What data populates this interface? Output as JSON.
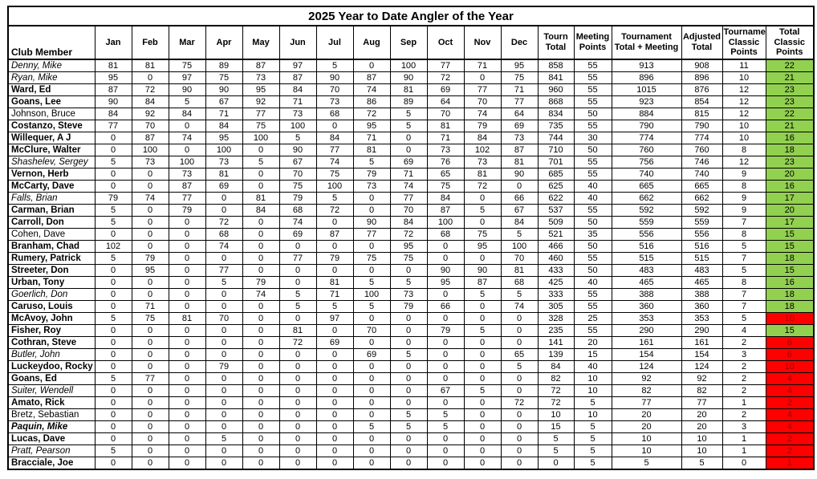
{
  "title": "2025 Year to Date Angler of the Year",
  "columns": {
    "member": "Club Member",
    "months": [
      "Jan",
      "Feb",
      "Mar",
      "Apr",
      "May",
      "Jun",
      "Jul",
      "Aug",
      "Sep",
      "Oct",
      "Nov",
      "Dec"
    ],
    "tourn_total": "Tourn Total",
    "meeting_points": "Meeting Points",
    "tournament_total_meeting": "Tournament Total + Meeting",
    "adjusted_total": "Adjusted Total",
    "tournament_classic_points": "Tournament Classic Points",
    "total_classic_points": "Total Classic Points"
  },
  "colors": {
    "green": "#92D050",
    "red": "#FF0000",
    "red_text": "#9E0000",
    "border": "#000000"
  },
  "rows": [
    {
      "name": "Denny, Mike",
      "style": "italic",
      "months": [
        81,
        81,
        75,
        89,
        87,
        97,
        5,
        0,
        100,
        77,
        71,
        95
      ],
      "tourn_total": 858,
      "meeting_points": 55,
      "tournament_total_meeting": 913,
      "adjusted_total": 908,
      "tournament_classic_points": 11,
      "total_classic_points": 22,
      "classic_status": "green"
    },
    {
      "name": "Ryan, Mike",
      "style": "italic",
      "months": [
        95,
        0,
        97,
        75,
        73,
        87,
        90,
        87,
        90,
        72,
        0,
        75
      ],
      "tourn_total": 841,
      "meeting_points": 55,
      "tournament_total_meeting": 896,
      "adjusted_total": 896,
      "tournament_classic_points": 10,
      "total_classic_points": 21,
      "classic_status": "green"
    },
    {
      "name": "Ward, Ed",
      "style": "bold",
      "months": [
        87,
        72,
        90,
        90,
        95,
        84,
        70,
        74,
        81,
        69,
        77,
        71
      ],
      "tourn_total": 960,
      "meeting_points": 55,
      "tournament_total_meeting": 1015,
      "adjusted_total": 876,
      "tournament_classic_points": 12,
      "total_classic_points": 23,
      "classic_status": "green"
    },
    {
      "name": "Goans, Lee",
      "style": "bold",
      "months": [
        90,
        84,
        5,
        67,
        92,
        71,
        73,
        86,
        89,
        64,
        70,
        77
      ],
      "tourn_total": 868,
      "meeting_points": 55,
      "tournament_total_meeting": 923,
      "adjusted_total": 854,
      "tournament_classic_points": 12,
      "total_classic_points": 23,
      "classic_status": "green"
    },
    {
      "name": "Johnson, Bruce",
      "style": "regular",
      "months": [
        84,
        92,
        84,
        71,
        77,
        73,
        68,
        72,
        5,
        70,
        74,
        64
      ],
      "tourn_total": 834,
      "meeting_points": 50,
      "tournament_total_meeting": 884,
      "adjusted_total": 815,
      "tournament_classic_points": 12,
      "total_classic_points": 22,
      "classic_status": "green"
    },
    {
      "name": "Costanzo, Steve",
      "style": "bold",
      "months": [
        77,
        70,
        0,
        84,
        75,
        100,
        0,
        95,
        5,
        81,
        79,
        69
      ],
      "tourn_total": 735,
      "meeting_points": 55,
      "tournament_total_meeting": 790,
      "adjusted_total": 790,
      "tournament_classic_points": 10,
      "total_classic_points": 21,
      "classic_status": "green"
    },
    {
      "name": "Willequer, A J",
      "style": "bold",
      "months": [
        0,
        87,
        74,
        95,
        100,
        5,
        84,
        71,
        0,
        71,
        84,
        73
      ],
      "tourn_total": 744,
      "meeting_points": 30,
      "tournament_total_meeting": 774,
      "adjusted_total": 774,
      "tournament_classic_points": 10,
      "total_classic_points": 16,
      "classic_status": "green"
    },
    {
      "name": "McClure, Walter",
      "style": "bold",
      "months": [
        0,
        100,
        0,
        100,
        0,
        90,
        77,
        81,
        0,
        73,
        102,
        87
      ],
      "tourn_total": 710,
      "meeting_points": 50,
      "tournament_total_meeting": 760,
      "adjusted_total": 760,
      "tournament_classic_points": 8,
      "total_classic_points": 18,
      "classic_status": "green"
    },
    {
      "name": "Shashelev, Sergey",
      "style": "italic",
      "months": [
        5,
        73,
        100,
        73,
        5,
        67,
        74,
        5,
        69,
        76,
        73,
        81
      ],
      "tourn_total": 701,
      "meeting_points": 55,
      "tournament_total_meeting": 756,
      "adjusted_total": 746,
      "tournament_classic_points": 12,
      "total_classic_points": 23,
      "classic_status": "green"
    },
    {
      "name": "Vernon, Herb",
      "style": "bold",
      "months": [
        0,
        0,
        73,
        81,
        0,
        70,
        75,
        79,
        71,
        65,
        81,
        90
      ],
      "tourn_total": 685,
      "meeting_points": 55,
      "tournament_total_meeting": 740,
      "adjusted_total": 740,
      "tournament_classic_points": 9,
      "total_classic_points": 20,
      "classic_status": "green"
    },
    {
      "name": "McCarty, Dave",
      "style": "bold",
      "months": [
        0,
        0,
        87,
        69,
        0,
        75,
        100,
        73,
        74,
        75,
        72,
        0
      ],
      "tourn_total": 625,
      "meeting_points": 40,
      "tournament_total_meeting": 665,
      "adjusted_total": 665,
      "tournament_classic_points": 8,
      "total_classic_points": 16,
      "classic_status": "green"
    },
    {
      "name": "Falls, Brian",
      "style": "italic",
      "months": [
        79,
        74,
        77,
        0,
        81,
        79,
        5,
        0,
        77,
        84,
        0,
        66
      ],
      "tourn_total": 622,
      "meeting_points": 40,
      "tournament_total_meeting": 662,
      "adjusted_total": 662,
      "tournament_classic_points": 9,
      "total_classic_points": 17,
      "classic_status": "green"
    },
    {
      "name": "Carman, Brian",
      "style": "bold",
      "months": [
        5,
        0,
        79,
        0,
        84,
        68,
        72,
        0,
        70,
        87,
        5,
        67
      ],
      "tourn_total": 537,
      "meeting_points": 55,
      "tournament_total_meeting": 592,
      "adjusted_total": 592,
      "tournament_classic_points": 9,
      "total_classic_points": 20,
      "classic_status": "green"
    },
    {
      "name": "Carroll, Don",
      "style": "bold",
      "months": [
        5,
        0,
        0,
        72,
        0,
        74,
        0,
        90,
        84,
        100,
        0,
        84
      ],
      "tourn_total": 509,
      "meeting_points": 50,
      "tournament_total_meeting": 559,
      "adjusted_total": 559,
      "tournament_classic_points": 7,
      "total_classic_points": 17,
      "classic_status": "green"
    },
    {
      "name": "Cohen, Dave",
      "style": "regular",
      "months": [
        0,
        0,
        0,
        68,
        0,
        69,
        87,
        77,
        72,
        68,
        75,
        5
      ],
      "tourn_total": 521,
      "meeting_points": 35,
      "tournament_total_meeting": 556,
      "adjusted_total": 556,
      "tournament_classic_points": 8,
      "total_classic_points": 15,
      "classic_status": "green"
    },
    {
      "name": "Branham, Chad",
      "style": "bold",
      "months": [
        102,
        0,
        0,
        74,
        0,
        0,
        0,
        0,
        95,
        0,
        95,
        100
      ],
      "tourn_total": 466,
      "meeting_points": 50,
      "tournament_total_meeting": 516,
      "adjusted_total": 516,
      "tournament_classic_points": 5,
      "total_classic_points": 15,
      "classic_status": "green"
    },
    {
      "name": "Rumery, Patrick",
      "style": "bold",
      "months": [
        5,
        79,
        0,
        0,
        0,
        77,
        79,
        75,
        75,
        0,
        0,
        70
      ],
      "tourn_total": 460,
      "meeting_points": 55,
      "tournament_total_meeting": 515,
      "adjusted_total": 515,
      "tournament_classic_points": 7,
      "total_classic_points": 18,
      "classic_status": "green"
    },
    {
      "name": "Streeter, Don",
      "style": "bold",
      "months": [
        0,
        95,
        0,
        77,
        0,
        0,
        0,
        0,
        0,
        90,
        90,
        81
      ],
      "tourn_total": 433,
      "meeting_points": 50,
      "tournament_total_meeting": 483,
      "adjusted_total": 483,
      "tournament_classic_points": 5,
      "total_classic_points": 15,
      "classic_status": "green"
    },
    {
      "name": "Urban, Tony",
      "style": "bold",
      "months": [
        0,
        0,
        0,
        5,
        79,
        0,
        81,
        5,
        5,
        95,
        87,
        68
      ],
      "tourn_total": 425,
      "meeting_points": 40,
      "tournament_total_meeting": 465,
      "adjusted_total": 465,
      "tournament_classic_points": 8,
      "total_classic_points": 16,
      "classic_status": "green"
    },
    {
      "name": "Goerlich, Don",
      "style": "italic",
      "months": [
        0,
        0,
        0,
        0,
        74,
        5,
        71,
        100,
        73,
        0,
        5,
        5
      ],
      "tourn_total": 333,
      "meeting_points": 55,
      "tournament_total_meeting": 388,
      "adjusted_total": 388,
      "tournament_classic_points": 7,
      "total_classic_points": 18,
      "classic_status": "green"
    },
    {
      "name": "Caruso, Louis",
      "style": "bold",
      "months": [
        0,
        71,
        0,
        0,
        0,
        5,
        5,
        5,
        79,
        66,
        0,
        74
      ],
      "tourn_total": 305,
      "meeting_points": 55,
      "tournament_total_meeting": 360,
      "adjusted_total": 360,
      "tournament_classic_points": 7,
      "total_classic_points": 18,
      "classic_status": "green"
    },
    {
      "name": "McAvoy, John",
      "style": "bold",
      "months": [
        5,
        75,
        81,
        70,
        0,
        0,
        97,
        0,
        0,
        0,
        0,
        0
      ],
      "tourn_total": 328,
      "meeting_points": 25,
      "tournament_total_meeting": 353,
      "adjusted_total": 353,
      "tournament_classic_points": 5,
      "total_classic_points": 10,
      "classic_status": "red"
    },
    {
      "name": "Fisher, Roy",
      "style": "bold",
      "months": [
        0,
        0,
        0,
        0,
        0,
        81,
        0,
        70,
        0,
        79,
        5,
        0
      ],
      "tourn_total": 235,
      "meeting_points": 55,
      "tournament_total_meeting": 290,
      "adjusted_total": 290,
      "tournament_classic_points": 4,
      "total_classic_points": 15,
      "classic_status": "green"
    },
    {
      "name": "Cothran, Steve",
      "style": "bold",
      "months": [
        0,
        0,
        0,
        0,
        0,
        72,
        69,
        0,
        0,
        0,
        0,
        0
      ],
      "tourn_total": 141,
      "meeting_points": 20,
      "tournament_total_meeting": 161,
      "adjusted_total": 161,
      "tournament_classic_points": 2,
      "total_classic_points": 6,
      "classic_status": "red"
    },
    {
      "name": "Butler, John",
      "style": "italic",
      "months": [
        0,
        0,
        0,
        0,
        0,
        0,
        0,
        69,
        5,
        0,
        0,
        65
      ],
      "tourn_total": 139,
      "meeting_points": 15,
      "tournament_total_meeting": 154,
      "adjusted_total": 154,
      "tournament_classic_points": 3,
      "total_classic_points": 6,
      "classic_status": "red"
    },
    {
      "name": "Luckeydoo, Rocky",
      "style": "bold",
      "months": [
        0,
        0,
        0,
        79,
        0,
        0,
        0,
        0,
        0,
        0,
        0,
        5
      ],
      "tourn_total": 84,
      "meeting_points": 40,
      "tournament_total_meeting": 124,
      "adjusted_total": 124,
      "tournament_classic_points": 2,
      "total_classic_points": 10,
      "classic_status": "red"
    },
    {
      "name": "Goans, Ed",
      "style": "bold",
      "months": [
        5,
        77,
        0,
        0,
        0,
        0,
        0,
        0,
        0,
        0,
        0,
        0
      ],
      "tourn_total": 82,
      "meeting_points": 10,
      "tournament_total_meeting": 92,
      "adjusted_total": 92,
      "tournament_classic_points": 2,
      "total_classic_points": 4,
      "classic_status": "red"
    },
    {
      "name": "Suiter, Wendell",
      "style": "italic",
      "months": [
        0,
        0,
        0,
        0,
        0,
        0,
        0,
        0,
        0,
        67,
        5,
        0
      ],
      "tourn_total": 72,
      "meeting_points": 10,
      "tournament_total_meeting": 82,
      "adjusted_total": 82,
      "tournament_classic_points": 2,
      "total_classic_points": 4,
      "classic_status": "red"
    },
    {
      "name": "Amato, Rick",
      "style": "bold",
      "months": [
        0,
        0,
        0,
        0,
        0,
        0,
        0,
        0,
        0,
        0,
        0,
        72
      ],
      "tourn_total": 72,
      "meeting_points": 5,
      "tournament_total_meeting": 77,
      "adjusted_total": 77,
      "tournament_classic_points": 1,
      "total_classic_points": 2,
      "classic_status": "red"
    },
    {
      "name": "Bretz, Sebastian",
      "style": "regular",
      "months": [
        0,
        0,
        0,
        0,
        0,
        0,
        0,
        0,
        5,
        5,
        0,
        0
      ],
      "tourn_total": 10,
      "meeting_points": 10,
      "tournament_total_meeting": 20,
      "adjusted_total": 20,
      "tournament_classic_points": 2,
      "total_classic_points": 4,
      "classic_status": "red"
    },
    {
      "name": "Paquin, Mike",
      "style": "bold-italic",
      "months": [
        0,
        0,
        0,
        0,
        0,
        0,
        0,
        5,
        5,
        5,
        0,
        0
      ],
      "tourn_total": 15,
      "meeting_points": 5,
      "tournament_total_meeting": 20,
      "adjusted_total": 20,
      "tournament_classic_points": 3,
      "total_classic_points": 4,
      "classic_status": "red"
    },
    {
      "name": "Lucas, Dave",
      "style": "bold",
      "months": [
        0,
        0,
        0,
        5,
        0,
        0,
        0,
        0,
        0,
        0,
        0,
        0
      ],
      "tourn_total": 5,
      "meeting_points": 5,
      "tournament_total_meeting": 10,
      "adjusted_total": 10,
      "tournament_classic_points": 1,
      "total_classic_points": 2,
      "classic_status": "red"
    },
    {
      "name": "Pratt, Pearson",
      "style": "italic",
      "months": [
        5,
        0,
        0,
        0,
        0,
        0,
        0,
        0,
        0,
        0,
        0,
        0
      ],
      "tourn_total": 5,
      "meeting_points": 5,
      "tournament_total_meeting": 10,
      "adjusted_total": 10,
      "tournament_classic_points": 1,
      "total_classic_points": 2,
      "classic_status": "red"
    },
    {
      "name": "Bracciale, Joe",
      "style": "bold",
      "months": [
        0,
        0,
        0,
        0,
        0,
        0,
        0,
        0,
        0,
        0,
        0,
        0
      ],
      "tourn_total": 0,
      "meeting_points": 5,
      "tournament_total_meeting": 5,
      "adjusted_total": 5,
      "tournament_classic_points": 0,
      "total_classic_points": 1,
      "classic_status": "red"
    }
  ]
}
